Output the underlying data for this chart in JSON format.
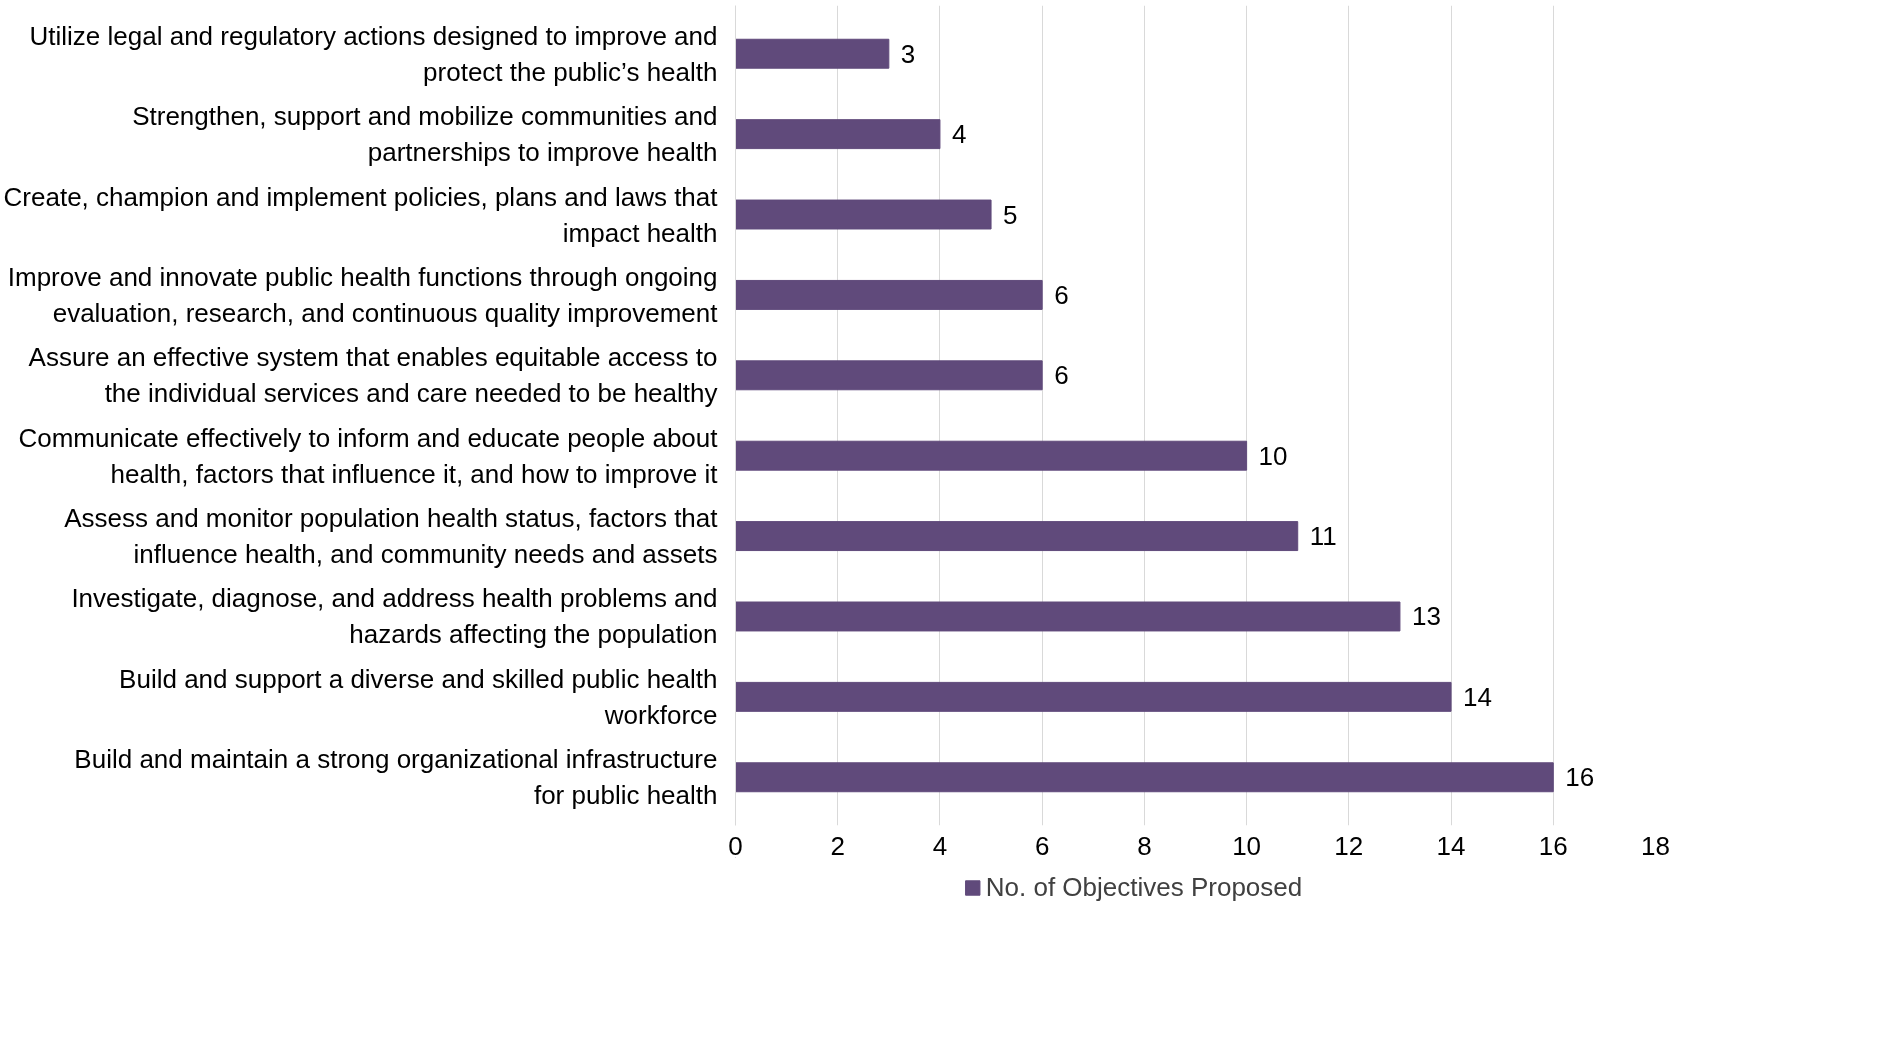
{
  "chart_data": {
    "type": "bar",
    "orientation": "horizontal",
    "categories": [
      "Utilize legal and regulatory actions designed to improve and protect the public’s health",
      "Strengthen, support and mobilize communities and partnerships to improve health",
      "Create, champion and implement policies, plans and laws that impact health",
      "Improve and innovate public health functions through ongoing evaluation, research, and continuous quality improvement",
      "Assure an effective system that enables equitable access to the individual services and care needed to be healthy",
      "Communicate effectively to inform and educate people about health, factors that influence it, and how to improve it",
      "Assess and monitor population health status, factors that influence health, and community needs and assets",
      "Investigate, diagnose, and address health problems and hazards affecting the population",
      "Build and support a diverse and skilled public health workforce",
      "Build and maintain a strong organizational infrastructure for public health"
    ],
    "series": [
      {
        "name": "No. of Objectives Proposed",
        "color": "#604a7b",
        "values": [
          3,
          4,
          5,
          6,
          6,
          10,
          11,
          13,
          14,
          16
        ]
      }
    ],
    "xlim": [
      0,
      18
    ],
    "xticks": [
      0,
      2,
      4,
      6,
      8,
      10,
      12,
      14,
      16,
      18
    ],
    "grid": "x",
    "legend": "bottom",
    "data_labels": true
  }
}
